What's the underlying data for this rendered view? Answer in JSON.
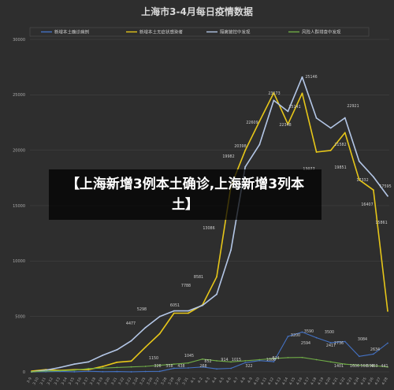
{
  "chart_data": {
    "type": "line",
    "title": "上海市3-4月每日疫情数据",
    "xlabel": "",
    "ylabel": "",
    "ylim": [
      0,
      30000
    ],
    "yticks": [
      0,
      5000,
      10000,
      15000,
      20000,
      25000,
      30000
    ],
    "grid": true,
    "legend_position": "top",
    "x": [
      "3-9",
      "3-11",
      "3-13",
      "3-15",
      "3-17",
      "3-19",
      "3-21",
      "3-23",
      "3-25",
      "3-27",
      "3-29",
      "3-31",
      "4-2",
      "4-4",
      "4-6",
      "4-8",
      "4-10",
      "4-12",
      "4-14",
      "4-16",
      "4-18",
      "4-20",
      "4-22",
      "4-24",
      "4-26",
      "4-28"
    ],
    "x_visible_labels": [
      "3-9",
      "3-10",
      "3-11",
      "3-12",
      "3-13",
      "3-14",
      "3-15",
      "3-16",
      "3-17",
      "3-18",
      "3-19",
      "3-20",
      "3-21",
      "3-22",
      "3-23",
      "3-24",
      "3-25",
      "3-26",
      "3-27",
      "3-28",
      "3-29",
      "3-30",
      "3-31",
      "4-1",
      "4-2",
      "4-3",
      "4-4",
      "4-5",
      "4-6",
      "4-7",
      "4-8",
      "4-9",
      "4-10",
      "4-11",
      "4-12",
      "4-13",
      "4-14",
      "4-15",
      "4-16",
      "4-17",
      "4-18",
      "4-19",
      "4-20",
      "4-21",
      "4-22",
      "4-23",
      "4-24",
      "4-25",
      "4-26",
      "4-27",
      "4-28"
    ],
    "series": [
      {
        "name": "新增本土确诊病例",
        "color": "#4472c4",
        "values": [
          4,
          11,
          41,
          5,
          57,
          17,
          31,
          4,
          38,
          50,
          326,
          358,
          438,
          268,
          322,
          824,
          1015,
          914,
          3200,
          3590,
          3084,
          2634,
          2736,
          1401,
          1606,
          2594
        ]
      },
      {
        "name": "新增本土无症状感染者",
        "color": "#e6c619",
        "values": [
          62,
          202,
          128,
          197,
          203,
          492,
          865,
          977,
          2231,
          3450,
          5298,
          5298,
          6051,
          8581,
          16766,
          19982,
          22609,
          25173,
          22348,
          25141,
          19831,
          19982,
          21582,
          17332,
          16407,
          5487
        ]
      },
      {
        "name": "隔离管控中发现",
        "color": "#b4c7e7",
        "values": [
          0,
          150,
          400,
          700,
          900,
          1500,
          2000,
          2800,
          4000,
          5000,
          5500,
          5500,
          6000,
          7000,
          11000,
          18500,
          20500,
          24500,
          23500,
          26600,
          22900,
          22000,
          22921,
          19000,
          17595,
          15861
        ]
      },
      {
        "name": "风险人群排查中发现",
        "color": "#70ad47",
        "values": [
          10,
          80,
          100,
          150,
          300,
          340,
          400,
          450,
          500,
          600,
          700,
          800,
          1150,
          1000,
          900,
          1000,
          1100,
          1200,
          1290,
          1300,
          1100,
          900,
          700,
          600,
          566,
          441
        ]
      }
    ],
    "data_labels": [
      "25146",
      "22921",
      "17595",
      "16407",
      "15861",
      "13077",
      "19851",
      "21582",
      "17332",
      "23173",
      "22609",
      "22348",
      "25141",
      "20398",
      "19982",
      "13086",
      "8581",
      "7788",
      "6051",
      "5298",
      "4477",
      "3500",
      "3200",
      "3590",
      "3084",
      "2634",
      "2736",
      "2417",
      "2594",
      "1401",
      "1606",
      "1150",
      "1045",
      "1006",
      "824",
      "1015",
      "914",
      "852",
      "566",
      "550",
      "463",
      "441",
      "358",
      "326",
      "438",
      "268",
      "322"
    ],
    "overlay_text": "【上海新增3例本土确诊,上海新增3列本土】"
  }
}
